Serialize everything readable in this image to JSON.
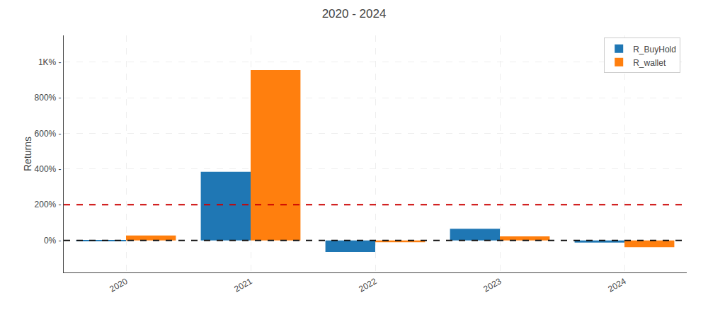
{
  "chart_data": {
    "type": "bar",
    "title": "2020 - 2024",
    "ylabel": "Returns",
    "categories": [
      "2020",
      "2021",
      "2022",
      "2023",
      "2024"
    ],
    "series": [
      {
        "name": "R_BuyHold",
        "values": [
          -5,
          385,
          -65,
          65,
          -12
        ]
      },
      {
        "name": "R_wallet",
        "values": [
          27,
          955,
          -10,
          22,
          -38
        ]
      }
    ],
    "reference_lines": [
      {
        "value": 200,
        "color": "#CC0000"
      },
      {
        "value": 0,
        "color": "#111111"
      }
    ],
    "ylim": [
      -180,
      1150
    ],
    "yticks": [
      {
        "value": 0,
        "label": "0% -"
      },
      {
        "value": 200,
        "label": "200% -"
      },
      {
        "value": 400,
        "label": "400% -"
      },
      {
        "value": 600,
        "label": "600% -"
      },
      {
        "value": 800,
        "label": "800% -"
      },
      {
        "value": 1000,
        "label": "1K% -"
      }
    ],
    "grid": true,
    "legend": "upper right"
  }
}
